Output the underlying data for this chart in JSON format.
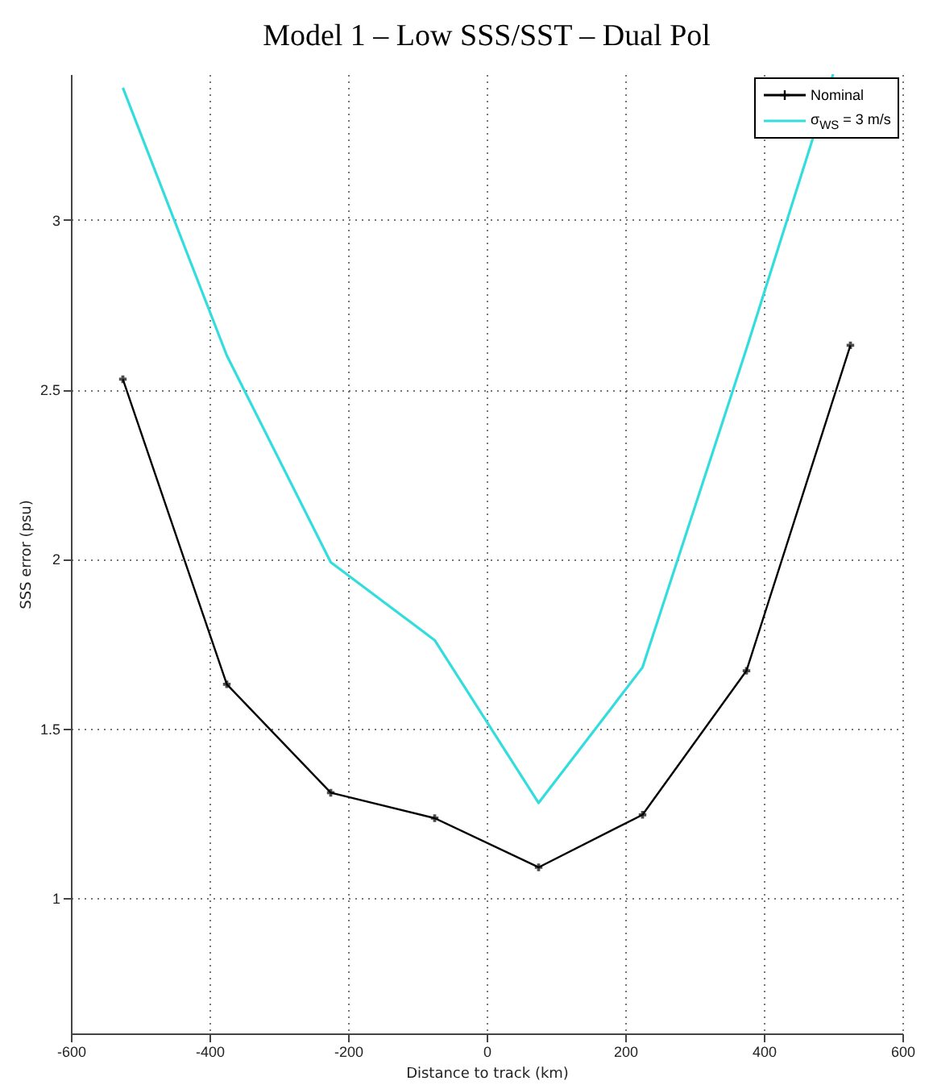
{
  "chart_data": {
    "type": "line",
    "title": "Model 1 – Low SSS/SST – Dual Pol",
    "xlabel": "Distance to track (km)",
    "ylabel": "SSS error (psu)",
    "x": [
      -525,
      -375,
      -225,
      -75,
      75,
      225,
      375,
      525
    ],
    "series": [
      {
        "name": "Nominal",
        "color": "#000000",
        "marker": "cross",
        "values": [
          2.53,
          1.63,
          1.31,
          1.235,
          1.09,
          1.245,
          1.67,
          2.63
        ]
      },
      {
        "name": "σ$_{WS}$ = 3 m/s",
        "color": "#33dddd",
        "marker": "none",
        "x": [
          -525,
          -375,
          -225,
          -75,
          75,
          225,
          375,
          500
        ],
        "values": [
          3.39,
          2.6,
          1.99,
          1.76,
          1.28,
          1.68,
          2.62,
          3.43
        ]
      }
    ],
    "xlim": [
      -600,
      600
    ],
    "xticks": [
      -600,
      -400,
      -200,
      0,
      200,
      400,
      600
    ],
    "ylim": [
      0.6,
      3.43
    ],
    "yticks": [
      1,
      1.5,
      2,
      2.5,
      3
    ],
    "grid": true,
    "legend": "top right",
    "line_style": "solid"
  }
}
